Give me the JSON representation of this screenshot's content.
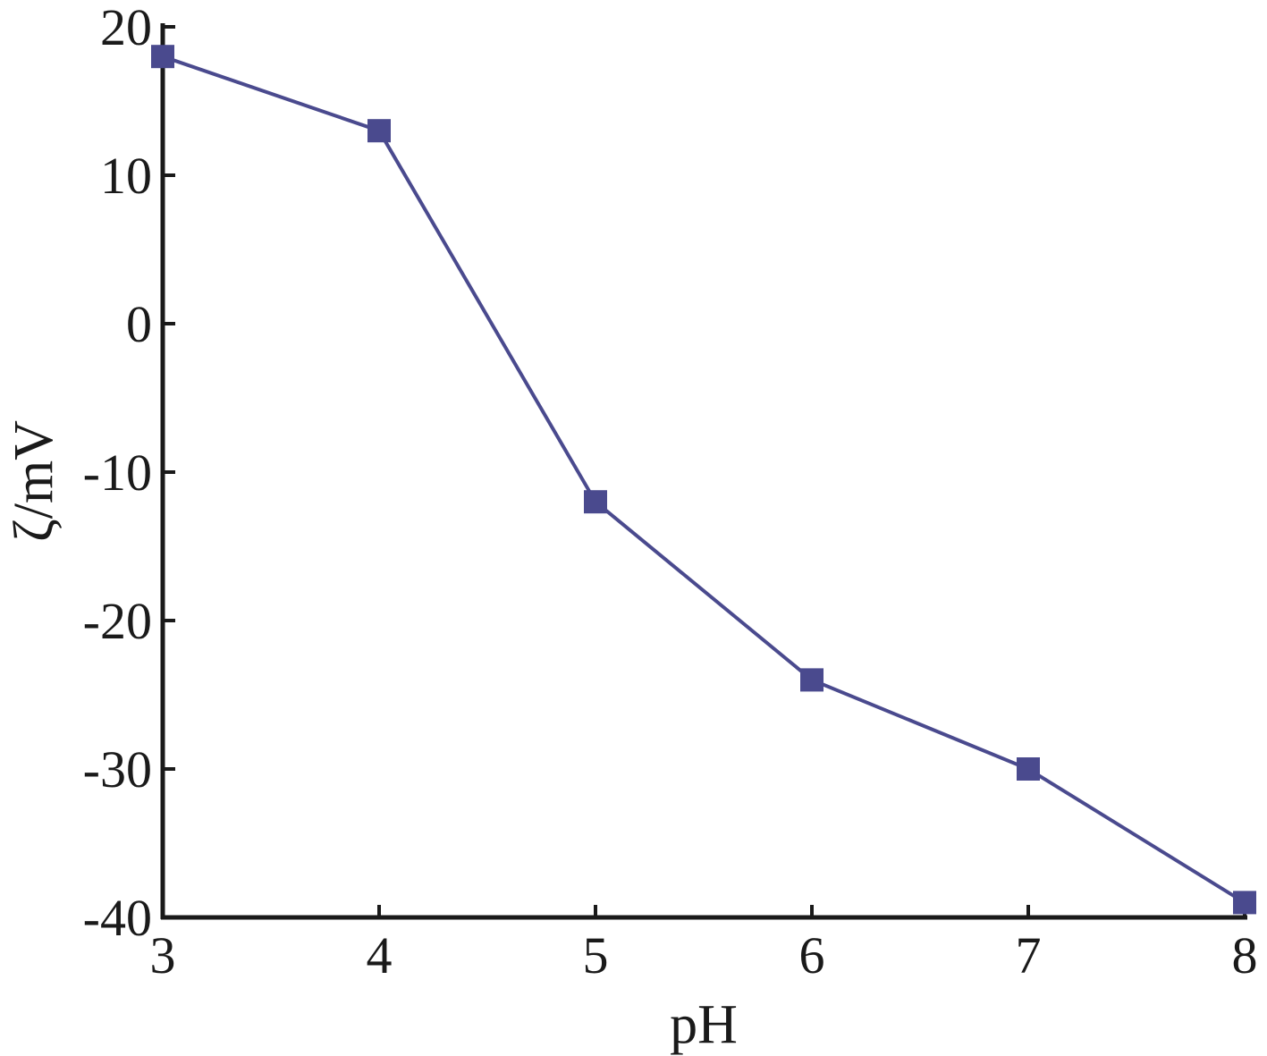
{
  "chart_data": {
    "type": "line",
    "title": "",
    "xlabel": "pH",
    "ylabel": "ζ/mV",
    "x": [
      3,
      4,
      5,
      6,
      7,
      8
    ],
    "series": [
      {
        "values": [
          18,
          13,
          -12,
          -24,
          -30,
          -39
        ]
      }
    ],
    "xlim": [
      3,
      8
    ],
    "ylim": [
      -40,
      20
    ],
    "xticks": [
      3,
      4,
      5,
      6,
      7,
      8
    ],
    "yticks": [
      20,
      10,
      0,
      -10,
      -20,
      -30,
      -40
    ],
    "grid": false,
    "marker": "square",
    "line_color": "#4a4a8e"
  }
}
